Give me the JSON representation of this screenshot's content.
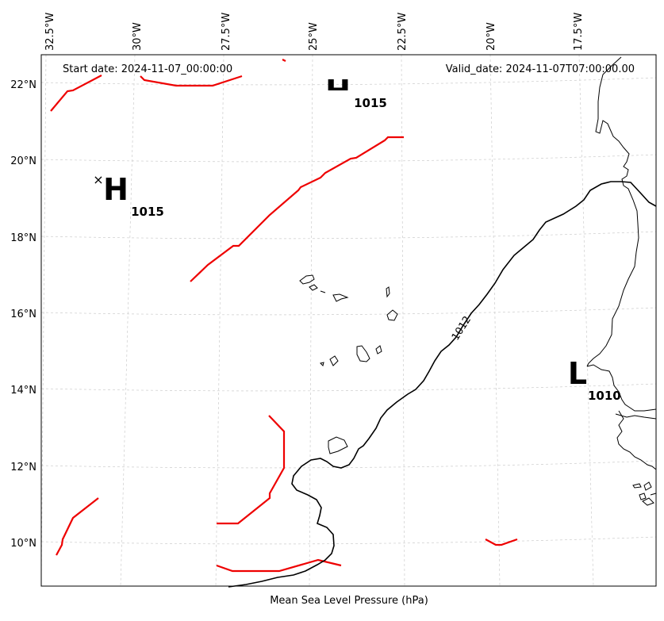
{
  "header": {
    "start_date": "Start date: 2024-11-07_00:00:00",
    "valid_date": "Valid_date: 2024-11-07T07:00:00.00"
  },
  "xlabel": "Mean Sea Level Pressure (hPa)",
  "lon_ticks": [
    {
      "label": "32.5°W"
    },
    {
      "label": "30°W"
    },
    {
      "label": "27.5°W"
    },
    {
      "label": "25°W"
    },
    {
      "label": "22.5°W"
    },
    {
      "label": "20°W"
    },
    {
      "label": "17.5°W"
    }
  ],
  "lat_ticks": [
    {
      "label": "22°N"
    },
    {
      "label": "20°N"
    },
    {
      "label": "18°N"
    },
    {
      "label": "16°N"
    },
    {
      "label": "14°N"
    },
    {
      "label": "12°N"
    },
    {
      "label": "10°N"
    }
  ],
  "pressure_centers": [
    {
      "type": "H",
      "value": "1015"
    },
    {
      "type": "H",
      "value": "1015"
    },
    {
      "type": "L",
      "value": "1010"
    }
  ],
  "isobar_labels": [
    {
      "text": "1012"
    }
  ],
  "colors": {
    "isobar": "#000000",
    "red_contour": "#ee0000",
    "coast": "#000000",
    "grid": "#cccccc"
  }
}
